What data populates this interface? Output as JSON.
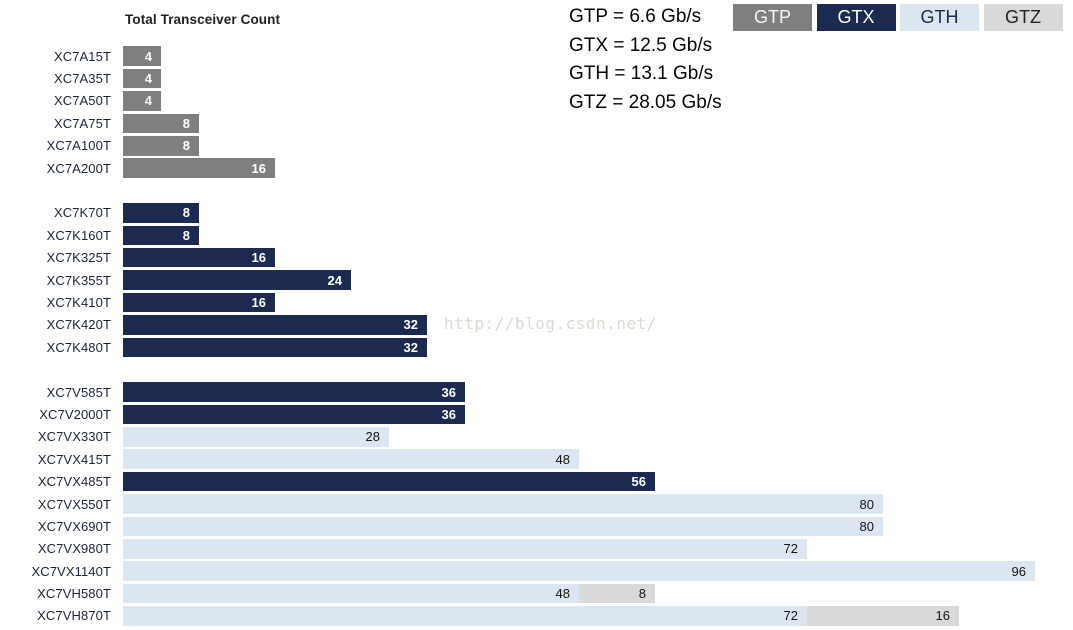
{
  "title": "Total Transceiver Count",
  "watermark": "http://blog.csdn.net/",
  "speed_notes": [
    "GTP = 6.6 Gb/s",
    "GTX = 12.5 Gb/s",
    "GTH = 13.1 Gb/s",
    "GTZ = 28.05 Gb/s"
  ],
  "legend": [
    {
      "label": "GTP",
      "color": "#7f7f7f",
      "text_color": "#f2f5fa"
    },
    {
      "label": "GTX",
      "color": "#1b2a4e",
      "text_color": "#ffffff"
    },
    {
      "label": "GTH",
      "color": "#dce6f1",
      "text_color": "#17294d"
    },
    {
      "label": "GTZ",
      "color": "#d9d9d9",
      "text_color": "#212121"
    }
  ],
  "colors": {
    "GTP": "#7f7f7f",
    "GTX": "#1b2a4e",
    "GTH": "#dce6f1",
    "GTZ": "#d9d9d9"
  },
  "label_on_dark": [
    "GTP",
    "GTX"
  ],
  "chart_data": {
    "type": "bar",
    "orientation": "horizontal",
    "stacked": true,
    "title": "Total Transceiver Count",
    "xlabel": "",
    "ylabel": "",
    "xlim": [
      0,
      100
    ],
    "grid": false,
    "legend_position": "top-right",
    "legend_entries": [
      "GTP",
      "GTX",
      "GTH",
      "GTZ"
    ],
    "groups": [
      {
        "rows": [
          {
            "label": "XC7A15T",
            "segments": [
              {
                "series": "GTP",
                "value": 4
              }
            ]
          },
          {
            "label": "XC7A35T",
            "segments": [
              {
                "series": "GTP",
                "value": 4
              }
            ]
          },
          {
            "label": "XC7A50T",
            "segments": [
              {
                "series": "GTP",
                "value": 4
              }
            ]
          },
          {
            "label": "XC7A75T",
            "segments": [
              {
                "series": "GTP",
                "value": 8
              }
            ]
          },
          {
            "label": "XC7A100T",
            "segments": [
              {
                "series": "GTP",
                "value": 8
              }
            ]
          },
          {
            "label": "XC7A200T",
            "segments": [
              {
                "series": "GTP",
                "value": 16
              }
            ]
          }
        ]
      },
      {
        "rows": [
          {
            "label": "XC7K70T",
            "segments": [
              {
                "series": "GTX",
                "value": 8
              }
            ]
          },
          {
            "label": "XC7K160T",
            "segments": [
              {
                "series": "GTX",
                "value": 8
              }
            ]
          },
          {
            "label": "XC7K325T",
            "segments": [
              {
                "series": "GTX",
                "value": 16
              }
            ]
          },
          {
            "label": "XC7K355T",
            "segments": [
              {
                "series": "GTX",
                "value": 24
              }
            ]
          },
          {
            "label": "XC7K410T",
            "segments": [
              {
                "series": "GTX",
                "value": 16
              }
            ]
          },
          {
            "label": "XC7K420T",
            "segments": [
              {
                "series": "GTX",
                "value": 32
              }
            ]
          },
          {
            "label": "XC7K480T",
            "segments": [
              {
                "series": "GTX",
                "value": 32
              }
            ]
          }
        ]
      },
      {
        "rows": [
          {
            "label": "XC7V585T",
            "segments": [
              {
                "series": "GTX",
                "value": 36
              }
            ]
          },
          {
            "label": "XC7V2000T",
            "segments": [
              {
                "series": "GTX",
                "value": 36
              }
            ]
          },
          {
            "label": "XC7VX330T",
            "segments": [
              {
                "series": "GTH",
                "value": 28
              }
            ]
          },
          {
            "label": "XC7VX415T",
            "segments": [
              {
                "series": "GTH",
                "value": 48
              }
            ]
          },
          {
            "label": "XC7VX485T",
            "segments": [
              {
                "series": "GTX",
                "value": 56
              }
            ]
          },
          {
            "label": "XC7VX550T",
            "segments": [
              {
                "series": "GTH",
                "value": 80
              }
            ]
          },
          {
            "label": "XC7VX690T",
            "segments": [
              {
                "series": "GTH",
                "value": 80
              }
            ]
          },
          {
            "label": "XC7VX980T",
            "segments": [
              {
                "series": "GTH",
                "value": 72
              }
            ]
          },
          {
            "label": "XC7VX1140T",
            "segments": [
              {
                "series": "GTH",
                "value": 96
              }
            ]
          },
          {
            "label": "XC7VH580T",
            "segments": [
              {
                "series": "GTH",
                "value": 48
              },
              {
                "series": "GTZ",
                "value": 8
              }
            ]
          },
          {
            "label": "XC7VH870T",
            "segments": [
              {
                "series": "GTH",
                "value": 72
              },
              {
                "series": "GTZ",
                "value": 16
              }
            ]
          }
        ]
      }
    ]
  }
}
